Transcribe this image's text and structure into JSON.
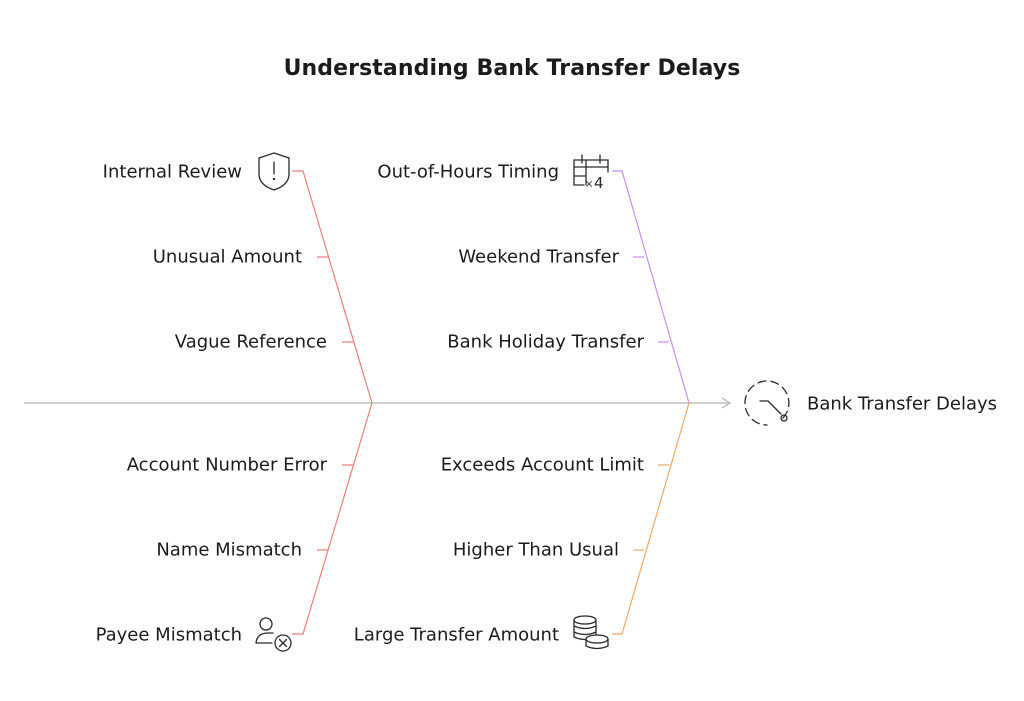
{
  "title": "Understanding Bank Transfer Delays",
  "effect": {
    "label": "Bank Transfer Delays",
    "icon": "clock-delay-icon"
  },
  "colors": {
    "spine": "#b5b5b5",
    "red": "#f07b7b",
    "purple": "#c88ef0",
    "orange": "#f3a862",
    "icon": "#2a2a2a"
  },
  "causes": {
    "top_left": {
      "color": "red",
      "items": [
        "Internal Review",
        "Unusual Amount",
        "Vague Reference"
      ],
      "icon": "shield-alert-icon"
    },
    "top_right": {
      "color": "purple",
      "items": [
        "Out-of-Hours Timing",
        "Weekend Transfer",
        "Bank Holiday Transfer"
      ],
      "icon": "calendar-multiply-icon"
    },
    "bottom_left": {
      "color": "red",
      "items": [
        "Account Number Error",
        "Name Mismatch",
        "Payee Mismatch"
      ],
      "icon": "user-cross-icon"
    },
    "bottom_right": {
      "color": "orange",
      "items": [
        "Exceeds Account Limit",
        "Higher Than Usual",
        "Large Transfer Amount"
      ],
      "icon": "coin-stack-icon"
    }
  }
}
